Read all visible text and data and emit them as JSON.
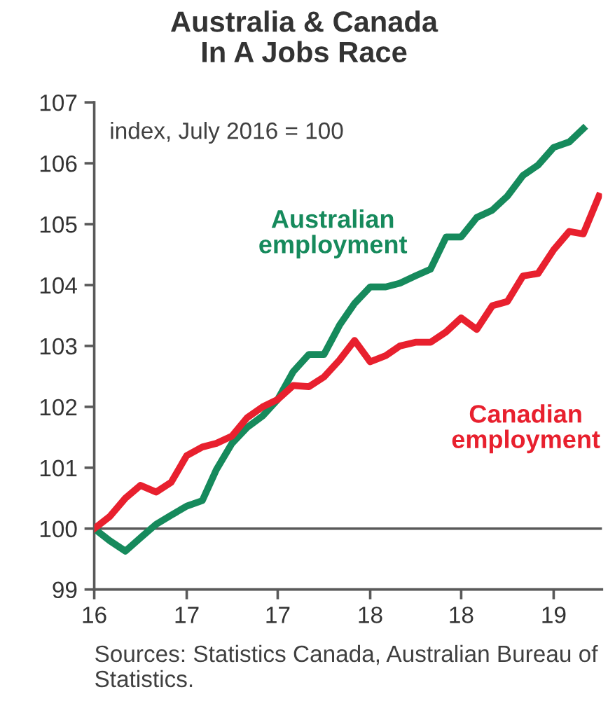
{
  "chart_data": {
    "type": "line",
    "title": "Australia & Canada\nIn A Jobs Race",
    "x": [
      "2016-07",
      "2016-08",
      "2016-09",
      "2016-10",
      "2016-11",
      "2016-12",
      "2017-01",
      "2017-02",
      "2017-03",
      "2017-04",
      "2017-05",
      "2017-06",
      "2017-07",
      "2017-08",
      "2017-09",
      "2017-10",
      "2017-11",
      "2017-12",
      "2018-01",
      "2018-02",
      "2018-03",
      "2018-04",
      "2018-05",
      "2018-06",
      "2018-07",
      "2018-08",
      "2018-09",
      "2018-10",
      "2018-11",
      "2018-12",
      "2019-01",
      "2019-02",
      "2019-03",
      "2019-04"
    ],
    "series": [
      {
        "name": "Australian\nemployment",
        "color": "#168a5c",
        "x": [
          "2016-07",
          "2016-08",
          "2016-09",
          "2016-10",
          "2016-11",
          "2016-12",
          "2017-01",
          "2017-02",
          "2017-03",
          "2017-04",
          "2017-05",
          "2017-06",
          "2017-07",
          "2017-08",
          "2017-09",
          "2017-10",
          "2017-11",
          "2017-12",
          "2018-01",
          "2018-02",
          "2018-03",
          "2018-04",
          "2018-05",
          "2018-06",
          "2018-07",
          "2018-08",
          "2018-09",
          "2018-10",
          "2018-11",
          "2018-12",
          "2019-01",
          "2019-02",
          "2019-03"
        ],
        "values": [
          100,
          99.8,
          99.63,
          99.85,
          100.07,
          100.22,
          100.37,
          100.46,
          100.97,
          101.4,
          101.66,
          101.85,
          102.12,
          102.58,
          102.86,
          102.86,
          103.34,
          103.7,
          103.97,
          103.97,
          104.03,
          104.15,
          104.26,
          104.79,
          104.79,
          105.11,
          105.23,
          105.46,
          105.8,
          105.97,
          106.26,
          106.35,
          106.57
        ]
      },
      {
        "name": "Canadian\nemployment",
        "color": "#e8202e",
        "values": [
          100,
          100.2,
          100.5,
          100.71,
          100.6,
          100.76,
          101.2,
          101.34,
          101.4,
          101.52,
          101.82,
          102.0,
          102.12,
          102.35,
          102.33,
          102.49,
          102.77,
          103.09,
          102.74,
          102.84,
          103.0,
          103.06,
          103.06,
          103.23,
          103.46,
          103.27,
          103.66,
          103.73,
          104.15,
          104.19,
          104.58,
          104.88,
          104.84,
          105.46
        ]
      }
    ],
    "xlim": [
      "2016-07",
      "2019-04-07"
    ],
    "xticks": [
      {
        "value": "2016-07",
        "label": "16"
      },
      {
        "value": "2017-01",
        "label": "17"
      },
      {
        "value": "2017-07",
        "label": "17"
      },
      {
        "value": "2018-01",
        "label": "18"
      },
      {
        "value": "2018-07",
        "label": "18"
      },
      {
        "value": "2019-01",
        "label": "19"
      }
    ],
    "ylim": [
      99,
      107
    ],
    "yticks": [
      99,
      100,
      101,
      102,
      103,
      104,
      105,
      106,
      107
    ],
    "ref_lines": [
      {
        "axis": "y",
        "value": 100,
        "color": "#595959"
      }
    ],
    "annotations": [
      "index, July 2016 = 100",
      "Sources: Statistics Canada, Australian Bureau of Statistics."
    ],
    "grid": false,
    "legend": false,
    "marker": "none",
    "line_style": "solid"
  }
}
